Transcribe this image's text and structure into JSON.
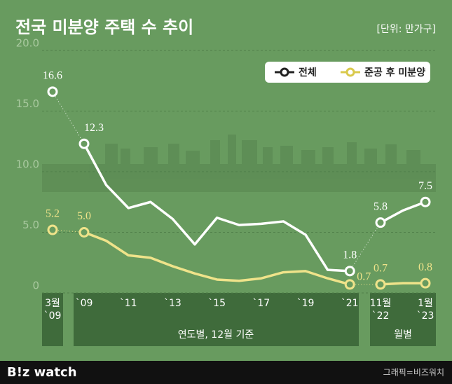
{
  "chart_data": {
    "type": "line",
    "title": "전국 미분양 주택 수 추이",
    "unit": "[단위: 만가구]",
    "categories": [
      "3월\n`09",
      "`09",
      null,
      "`11",
      null,
      "`13",
      null,
      "`15",
      null,
      "`17",
      null,
      "`19",
      null,
      "`21",
      "11월\n`22",
      null,
      "1월\n`23"
    ],
    "groups": [
      "연도별, 12월 기준",
      "월별"
    ],
    "series": [
      {
        "name": "전체",
        "color": "#ffffff",
        "values": [
          16.6,
          12.3,
          8.9,
          7.0,
          7.5,
          6.1,
          4.0,
          6.2,
          5.6,
          5.7,
          5.9,
          4.8,
          1.9,
          1.8,
          5.8,
          6.8,
          7.5
        ],
        "value_labels": [
          "16.6",
          "12.3",
          null,
          null,
          null,
          null,
          null,
          null,
          null,
          null,
          null,
          null,
          null,
          "1.8",
          "5.8",
          null,
          "7.5"
        ]
      },
      {
        "name": "준공 후 미분양",
        "color": "#efe38a",
        "values": [
          5.2,
          5.0,
          4.3,
          3.1,
          2.9,
          2.2,
          1.6,
          1.1,
          1.0,
          1.2,
          1.7,
          1.8,
          1.2,
          0.7,
          0.7,
          0.8,
          0.8
        ],
        "value_labels": [
          "5.2",
          "5.0",
          null,
          null,
          null,
          null,
          null,
          null,
          null,
          null,
          null,
          null,
          null,
          "0.7",
          "0.7",
          null,
          "0.8"
        ]
      }
    ],
    "ylim": [
      0,
      20
    ],
    "yticks": [
      0,
      {
        "value": 5,
        "label": "5.0"
      },
      {
        "value": 10,
        "label": "10.0"
      },
      {
        "value": 15,
        "label": "15.0"
      },
      {
        "value": 20,
        "label": "20.0"
      }
    ],
    "grid": true,
    "legend": "top-right"
  },
  "footer": {
    "logo": "B!z watch",
    "credit": "그래픽=비즈워치"
  }
}
